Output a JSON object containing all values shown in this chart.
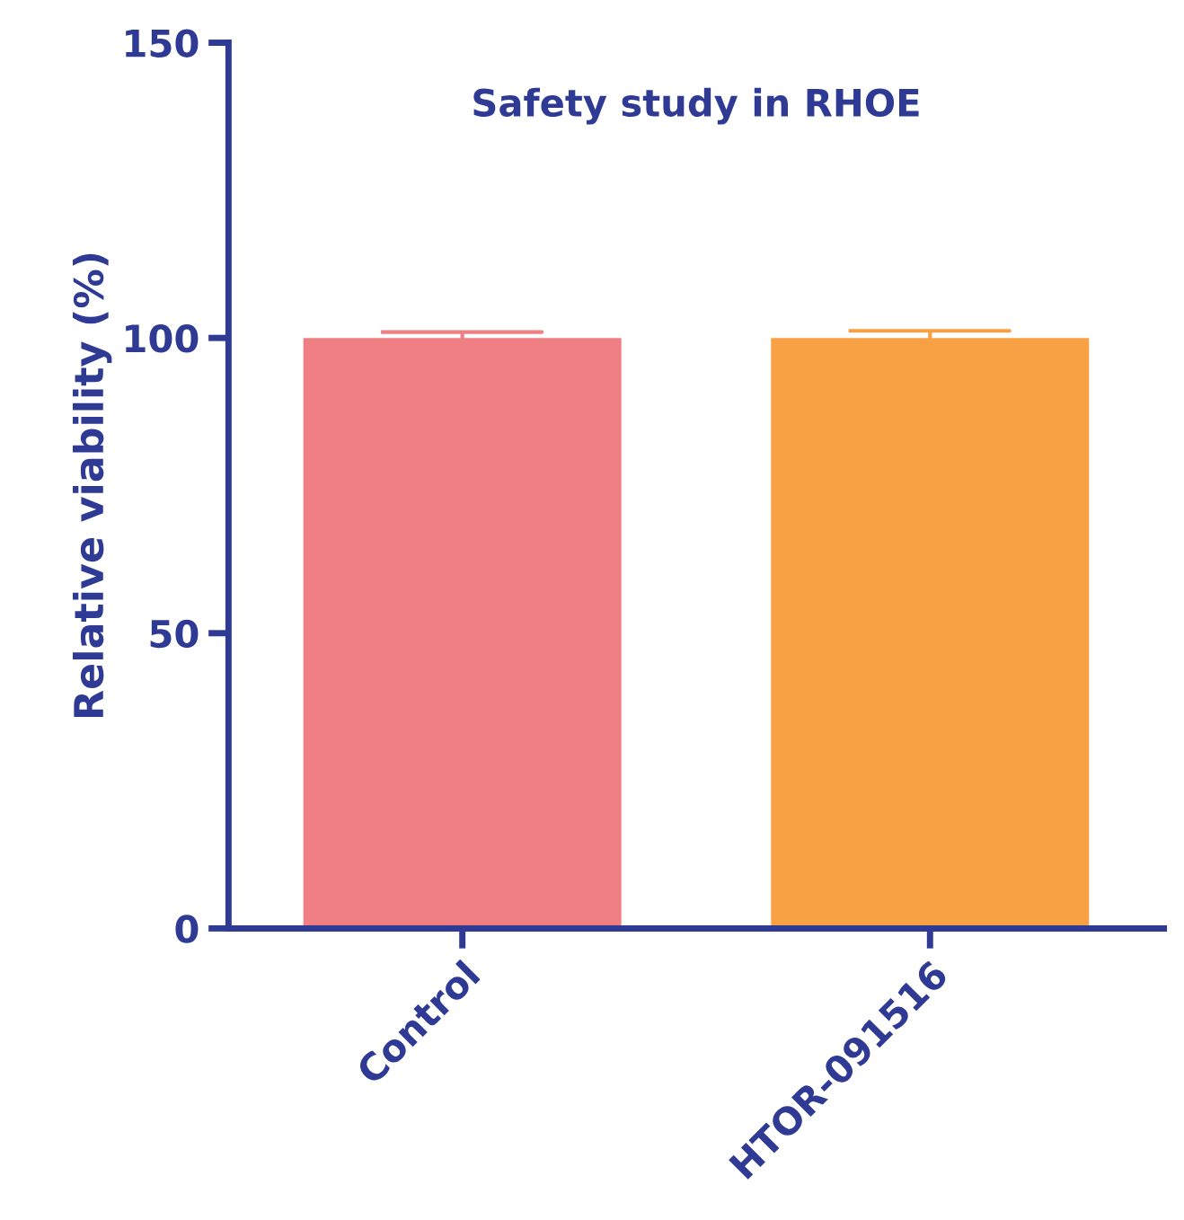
{
  "chart_data": {
    "type": "bar",
    "title": "Safety study in RHOE",
    "ylabel": "Relative viability (%)",
    "categories": [
      "Control",
      "HTOR-091516"
    ],
    "values": [
      100,
      100
    ],
    "colors": [
      "#f07f83",
      "#f7a044"
    ],
    "errors": [
      1.0,
      1.2
    ],
    "ylim": [
      0,
      150
    ],
    "yticks": [
      0,
      50,
      100,
      150
    ],
    "grid": false,
    "legend": false
  }
}
